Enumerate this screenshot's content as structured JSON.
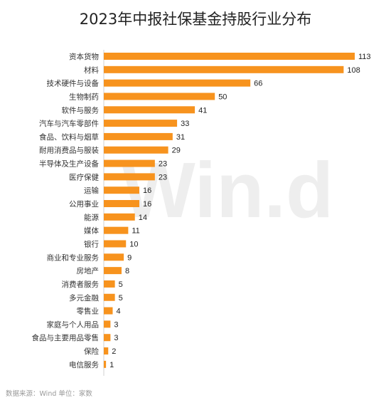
{
  "chart_data": {
    "type": "bar",
    "orientation": "horizontal",
    "title": "2023年中报社保基金持股行业分布",
    "categories": [
      "资本货物",
      "材料",
      "技术硬件与设备",
      "生物制药",
      "软件与服务",
      "汽车与汽车零部件",
      "食品、饮料与烟草",
      "耐用消费品与服装",
      "半导体及生产设备",
      "医疗保健",
      "运输",
      "公用事业",
      "能源",
      "媒体",
      "银行",
      "商业和专业服务",
      "房地产",
      "消费者服务",
      "多元金融",
      "零售业",
      "家庭与个人用品",
      "食品与主要用品零售",
      "保险",
      "电信服务"
    ],
    "values": [
      113,
      108,
      66,
      50,
      41,
      33,
      31,
      29,
      23,
      23,
      16,
      16,
      14,
      11,
      10,
      9,
      8,
      5,
      5,
      4,
      3,
      3,
      2,
      1
    ],
    "bar_color": "#f7931e",
    "xlim": [
      0,
      113
    ],
    "grid": false,
    "legend": "none"
  },
  "watermark": "Win.d",
  "source": "数据来源：Wind  单位：家数"
}
